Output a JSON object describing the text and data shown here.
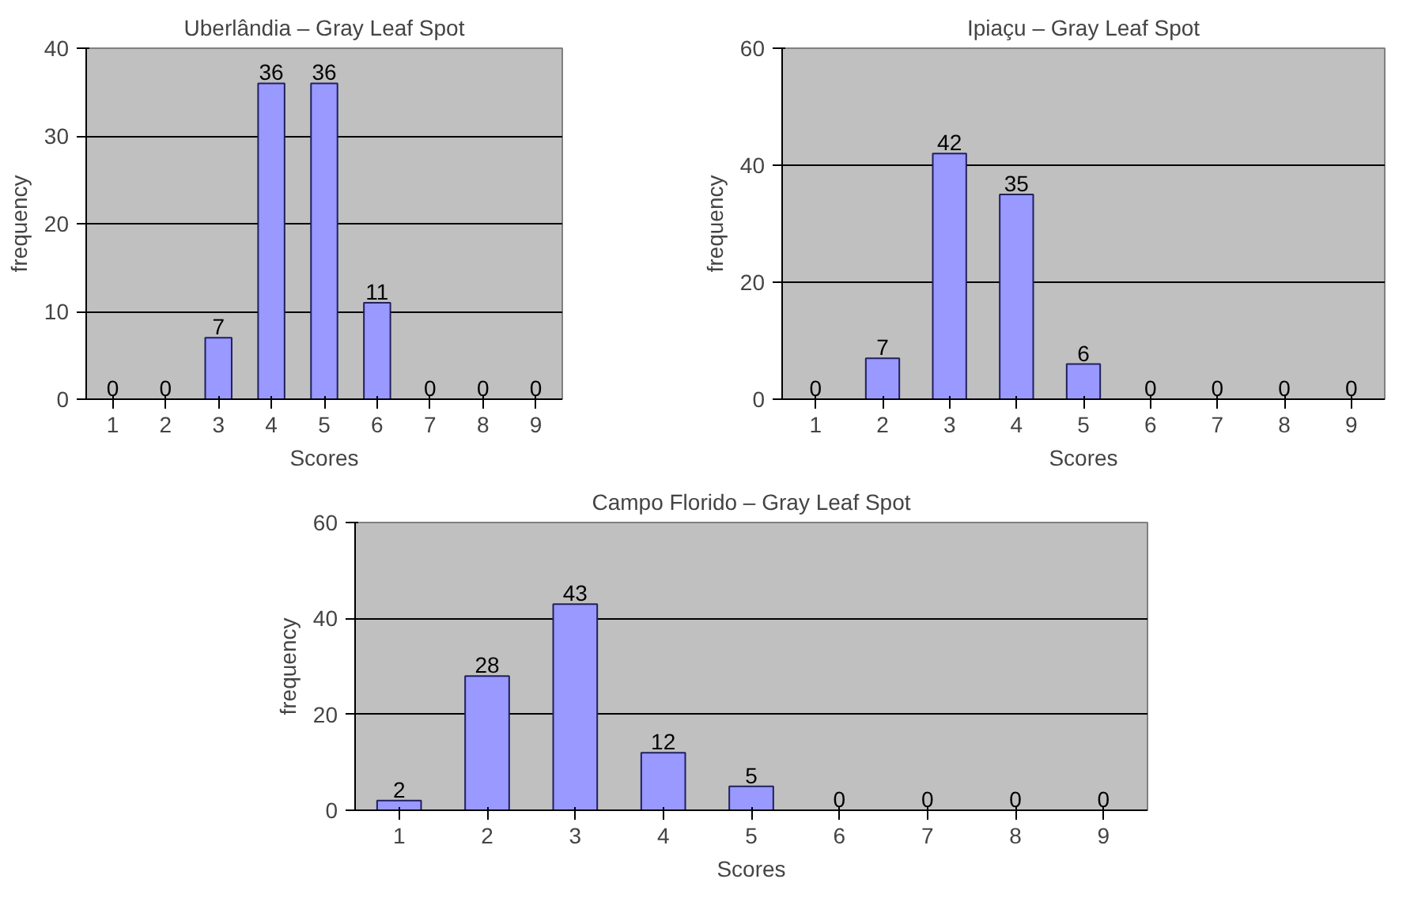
{
  "chart_data": [
    {
      "type": "bar",
      "title": "Uberlândia – Gray Leaf Spot",
      "xlabel": "Scores",
      "ylabel": "frequency",
      "categories": [
        "1",
        "2",
        "3",
        "4",
        "5",
        "6",
        "7",
        "8",
        "9"
      ],
      "values": [
        0,
        0,
        7,
        36,
        36,
        11,
        0,
        0,
        0
      ],
      "color": "#9999ff",
      "ylim": [
        0,
        40
      ],
      "yticks": [
        0,
        10,
        20,
        30,
        40
      ],
      "grid": "y",
      "data_labels": true
    },
    {
      "type": "bar",
      "title": "Ipiaçu – Gray Leaf Spot",
      "xlabel": "Scores",
      "ylabel": "frequency",
      "categories": [
        "1",
        "2",
        "3",
        "4",
        "5",
        "6",
        "7",
        "8",
        "9"
      ],
      "values": [
        0,
        7,
        42,
        35,
        6,
        0,
        0,
        0,
        0
      ],
      "color": "#9999ff",
      "ylim": [
        0,
        60
      ],
      "yticks": [
        0,
        20,
        40,
        60
      ],
      "grid": "y",
      "data_labels": true
    },
    {
      "type": "bar",
      "title": "Campo Florido – Gray Leaf Spot",
      "xlabel": "Scores",
      "ylabel": "frequency",
      "categories": [
        "1",
        "2",
        "3",
        "4",
        "5",
        "6",
        "7",
        "8",
        "9"
      ],
      "values": [
        2,
        28,
        43,
        12,
        5,
        0,
        0,
        0,
        0
      ],
      "color": "#9999ff",
      "ylim": [
        0,
        60
      ],
      "yticks": [
        0,
        20,
        40,
        60
      ],
      "grid": "y",
      "data_labels": true
    }
  ]
}
